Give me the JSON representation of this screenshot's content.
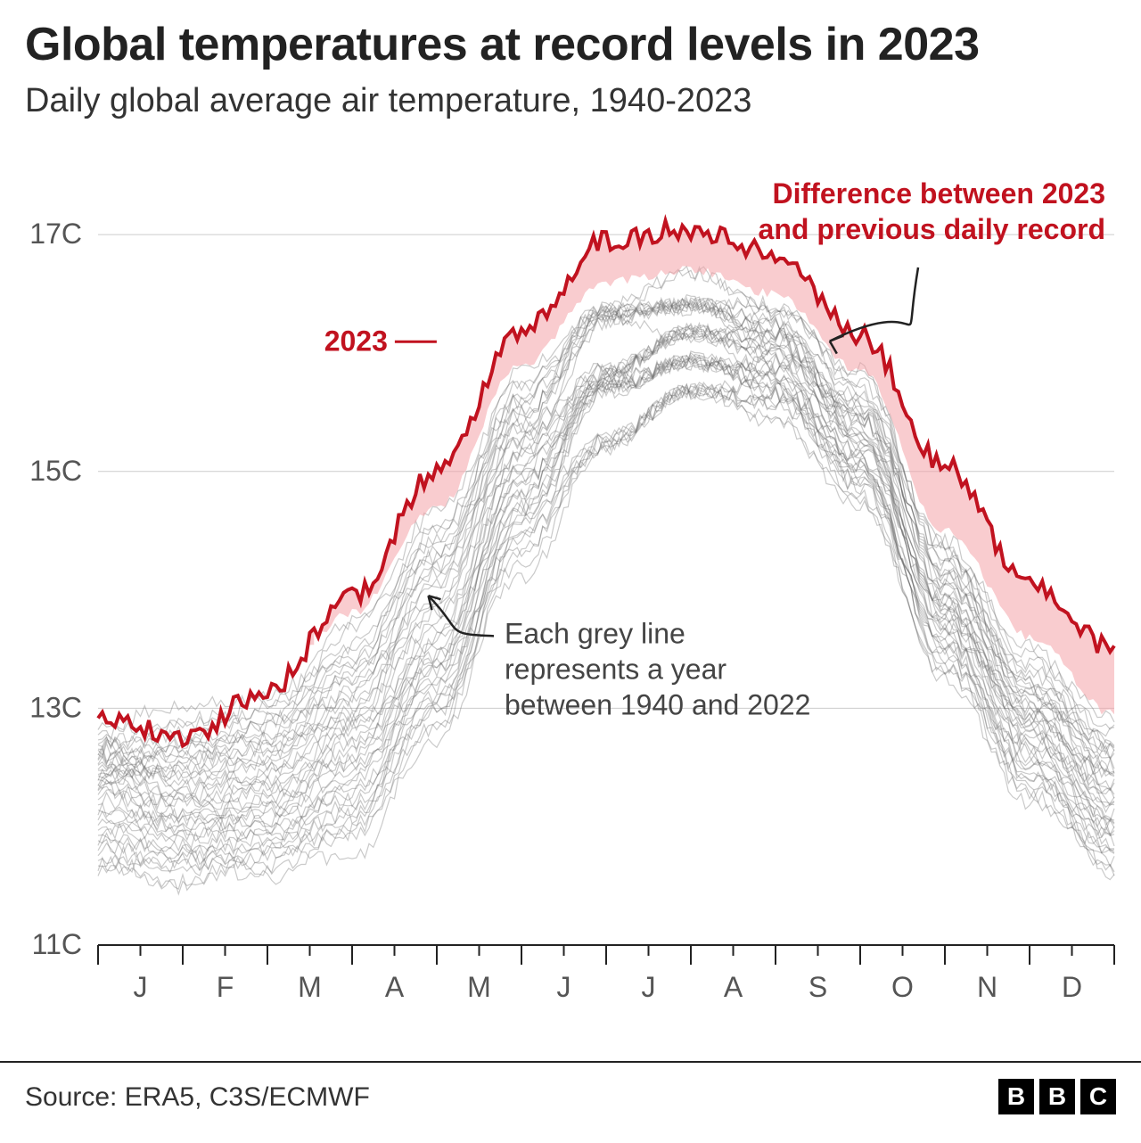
{
  "title": "Global temperatures at record levels in 2023",
  "subtitle": "Daily global average air temperature, 1940-2023",
  "source": "Source: ERA5, C3S/ECMWF",
  "logo": {
    "letters": [
      "B",
      "B",
      "C"
    ]
  },
  "chart": {
    "type": "line",
    "background_color": "#ffffff",
    "grid_color": "#cccccc",
    "axis_color": "#222222",
    "ylim": [
      11,
      17.4
    ],
    "yticks": [
      11,
      13,
      15,
      17
    ],
    "ytick_labels": [
      "11C",
      "13C",
      "15C",
      "17C"
    ],
    "xticks_months": [
      "J",
      "F",
      "M",
      "A",
      "M",
      "J",
      "J",
      "A",
      "S",
      "O",
      "N",
      "D"
    ],
    "grey_line_color": "#666666",
    "grey_line_count": 40,
    "grey_band": {
      "lower_baseline": [
        11.4,
        11.4,
        11.45,
        11.7,
        12.6,
        14.0,
        15.1,
        15.5,
        15.4,
        14.7,
        13.2,
        12.1,
        11.5
      ],
      "upper_baseline": [
        13.15,
        13.05,
        13.2,
        13.8,
        14.7,
        15.9,
        16.6,
        16.7,
        16.5,
        15.85,
        14.5,
        13.6,
        12.95
      ]
    },
    "series_2023_color": "#c1121f",
    "series_2023_fill": "#f4a3a8",
    "series_2023": [
      12.95,
      12.75,
      13.15,
      13.95,
      15.0,
      16.2,
      16.95,
      17.05,
      16.85,
      16.15,
      15.05,
      14.05,
      13.5
    ],
    "previous_record": [
      13.15,
      13.05,
      13.2,
      13.8,
      14.7,
      15.9,
      16.6,
      16.7,
      16.5,
      15.85,
      14.5,
      13.6,
      12.95
    ],
    "noise_amp_grey": 0.07,
    "noise_amp_red": 0.09,
    "annotations": {
      "label_2023": "2023",
      "diff_label_line1": "Difference between 2023",
      "diff_label_line2": "and previous daily record",
      "grey_label_line1": "Each grey line",
      "grey_label_line2": "represents a year",
      "grey_label_line3": "between 1940 and 2022"
    }
  }
}
